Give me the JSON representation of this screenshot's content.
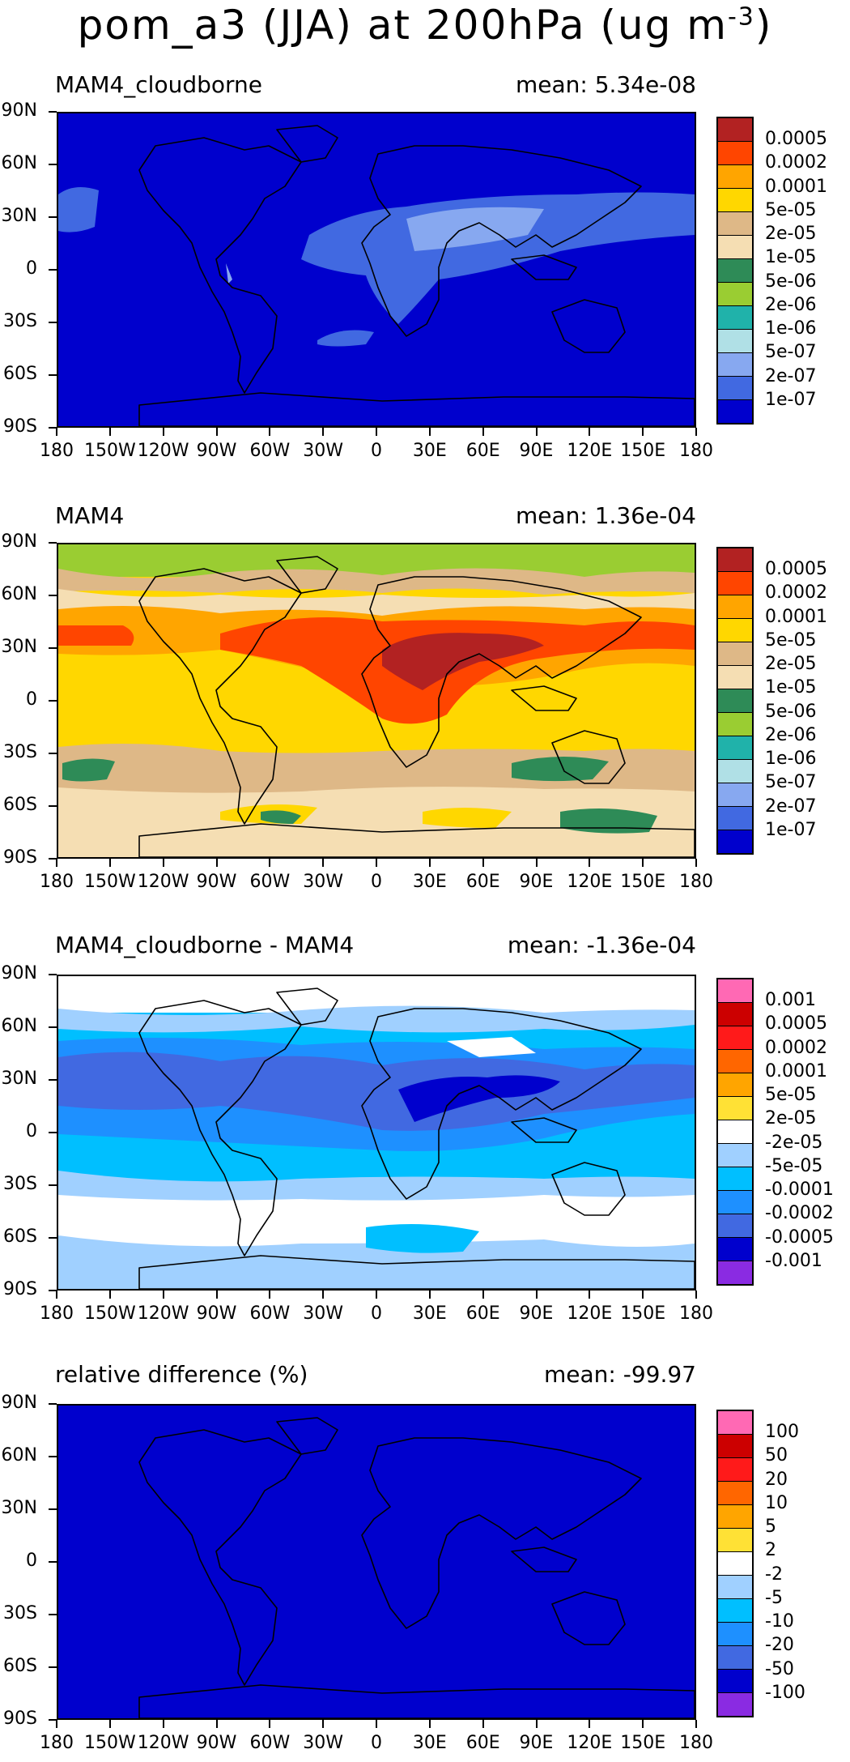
{
  "title_main": "pom_a3 (JJA) at 200hPa (ug m",
  "title_exp": "-3",
  "title_close": ")",
  "lat_labels": [
    "90N",
    "60N",
    "30N",
    "0",
    "30S",
    "60S",
    "90S"
  ],
  "lon_labels": [
    "180",
    "150W",
    "120W",
    "90W",
    "60W",
    "30W",
    "0",
    "30E",
    "60E",
    "90E",
    "120E",
    "150E",
    "180"
  ],
  "panels": [
    {
      "name": "MAM4_cloudborne",
      "mean": "mean: 5.34e-08",
      "fill": "#0000cd",
      "levels": [
        "0.0005",
        "0.0002",
        "0.0001",
        "5e-05",
        "2e-05",
        "1e-05",
        "5e-06",
        "2e-06",
        "1e-06",
        "5e-07",
        "2e-07",
        "1e-07"
      ],
      "colors": [
        "#b22222",
        "#ff4500",
        "#ffa500",
        "#ffd700",
        "#deb887",
        "#f5deb3",
        "#2e8b57",
        "#9acd32",
        "#20b2aa",
        "#b0e0e6",
        "#87a8f0",
        "#4169e1",
        "#0000cd"
      ]
    },
    {
      "name": "MAM4",
      "mean": "mean: 1.36e-04",
      "fill": "#ffd700",
      "levels": [
        "0.0005",
        "0.0002",
        "0.0001",
        "5e-05",
        "2e-05",
        "1e-05",
        "5e-06",
        "2e-06",
        "1e-06",
        "5e-07",
        "2e-07",
        "1e-07"
      ],
      "colors": [
        "#b22222",
        "#ff4500",
        "#ffa500",
        "#ffd700",
        "#deb887",
        "#f5deb3",
        "#2e8b57",
        "#9acd32",
        "#20b2aa",
        "#b0e0e6",
        "#87a8f0",
        "#4169e1",
        "#0000cd"
      ]
    },
    {
      "name": "MAM4_cloudborne - MAM4",
      "mean": "mean: -1.36e-04",
      "fill": "#1e90ff",
      "levels": [
        "0.001",
        "0.0005",
        "0.0002",
        "0.0001",
        "5e-05",
        "2e-05",
        "-2e-05",
        "-5e-05",
        "-0.0001",
        "-0.0002",
        "-0.0005",
        "-0.001"
      ],
      "colors": [
        "#ff69b4",
        "#cc0000",
        "#ff1a1a",
        "#ff6600",
        "#ffa500",
        "#ffe135",
        "#ffffff",
        "#a0d0ff",
        "#00bfff",
        "#1e90ff",
        "#4169e1",
        "#0000cd",
        "#8a2be2"
      ]
    },
    {
      "name": "relative difference (%)",
      "mean": "mean: -99.97",
      "fill": "#0000cd",
      "levels": [
        "100",
        "50",
        "20",
        "10",
        "5",
        "2",
        "-2",
        "-5",
        "-10",
        "-20",
        "-50",
        "-100"
      ],
      "colors": [
        "#ff69b4",
        "#cc0000",
        "#ff1a1a",
        "#ff6600",
        "#ffa500",
        "#ffe135",
        "#ffffff",
        "#a0d0ff",
        "#00bfff",
        "#1e90ff",
        "#4169e1",
        "#0000cd",
        "#8a2be2"
      ]
    }
  ]
}
